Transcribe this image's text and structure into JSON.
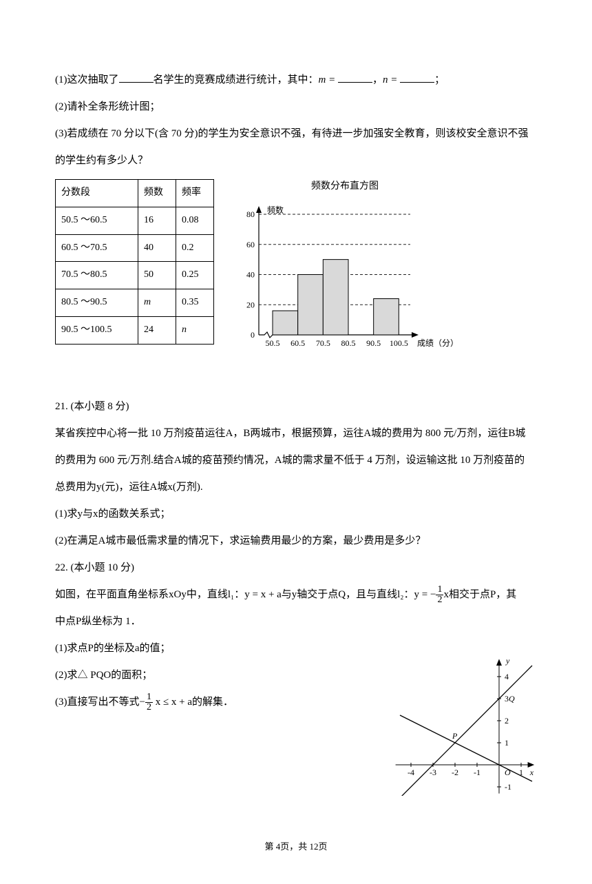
{
  "q_top": {
    "line1_pre": "(1)这次抽取了",
    "line1_mid": "名学生的竞赛成绩进行统计，其中：",
    "line1_m": "m =",
    "line1_sep": "，",
    "line1_n": "n =",
    "line1_end": "；",
    "line2": "(2)请补全条形统计图；",
    "line3": "(3)若成绩在 70 分以下(含 70 分)的学生为安全意识不强，有待进一步加强安全教育，则该校安全意识不强",
    "line4": "的学生约有多少人？"
  },
  "table": {
    "headers": [
      "分数段",
      "频数",
      "频率"
    ],
    "rows": [
      [
        "50.5 ～60.5",
        "16",
        "0.08"
      ],
      [
        "60.5 ～70.5",
        "40",
        "0.2"
      ],
      [
        "70.5 ～80.5",
        "50",
        "0.25"
      ],
      [
        "80.5 ～90.5",
        "m",
        "0.35"
      ],
      [
        "90.5 ～100.5",
        "24",
        "n"
      ]
    ],
    "col_widths": [
      "120px",
      "55px",
      "55px"
    ]
  },
  "histogram": {
    "title": "频数分布直方图",
    "ylabel": "频数",
    "xlabel": "成绩（分）",
    "yticks": [
      0,
      20,
      40,
      60,
      80
    ],
    "xticks": [
      "50.5",
      "60.5",
      "70.5",
      "80.5",
      "90.5",
      "100.5"
    ],
    "bars": [
      {
        "x": 0,
        "h": 16
      },
      {
        "x": 1,
        "h": 40
      },
      {
        "x": 2,
        "h": 50
      },
      {
        "x": 3,
        "h": 0
      },
      {
        "x": 4,
        "h": 24
      }
    ],
    "bar_color": "#d9d9d9",
    "bar_stroke": "#000000",
    "grid_color": "#222222",
    "axis_color": "#000000",
    "font_size": 12
  },
  "q21": {
    "num": "21. (本小题 8 分)",
    "p1": "某省疾控中心将一批 10 万剂疫苗运往A，B两城市，根据预算，运往A城的费用为 800 元/万剂，运往B城",
    "p2": "的费用为 600 元/万剂.结合A城的疫苗预约情况，A城的需求量不低于 4 万剂，设运输这批 10 万剂疫苗的",
    "p3": "总费用为y(元)，运往A城x(万剂).",
    "sub1": "(1)求y与x的函数关系式；",
    "sub2": "(2)在满足A城市最低需求量的情况下，求运输费用最少的方案，最少费用是多少？"
  },
  "q22": {
    "num": "22. (本小题 10 分)",
    "p1a": "如图，在平面直角坐标系xOy中，直线l₁：y = x + a与y轴交于点Q，且与直线l₂：y = −",
    "p1b": "x相交于点P，其",
    "p2": "中点P纵坐标为 1．",
    "sub1": "(1)求点P的坐标及a的值；",
    "sub2": "(2)求△ PQO的面积；",
    "sub3a": "(3)直接写出不等式−",
    "sub3b": " x ≤ x + a的解集．"
  },
  "coord_graph": {
    "ylabel": "y",
    "xlabel": "x",
    "O": "O",
    "P": "P",
    "Q": "Q",
    "xticks": [
      -4,
      -3,
      -2,
      -1,
      1
    ],
    "yticks": [
      -1,
      1,
      2,
      3,
      4
    ],
    "axis_color": "#000000",
    "line_color": "#000000"
  },
  "footer": "第 4页，共 12页"
}
